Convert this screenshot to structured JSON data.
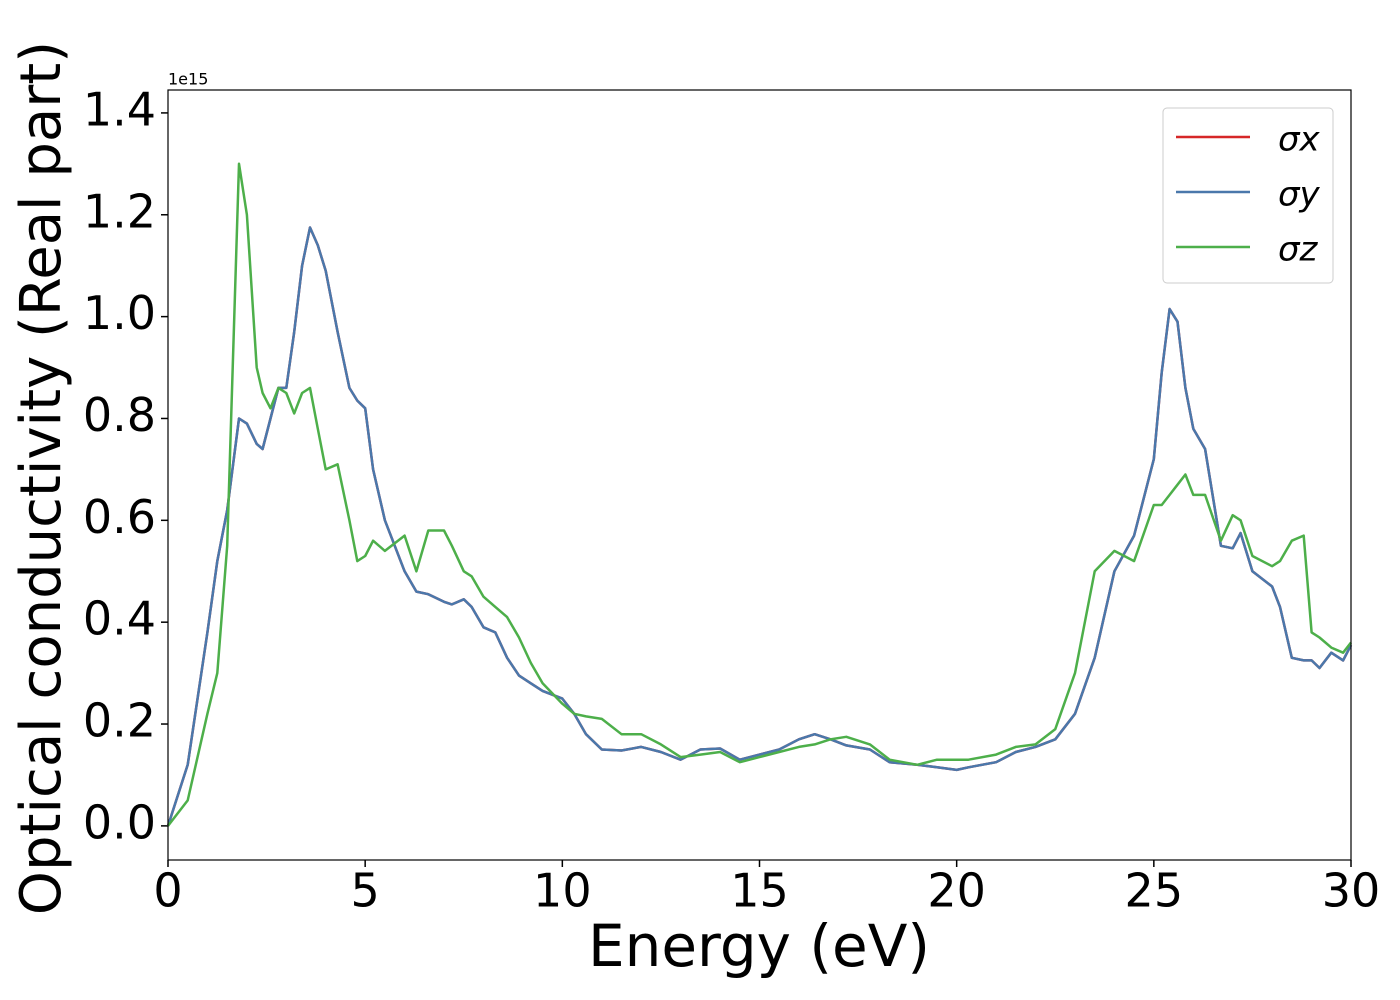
{
  "chart_data": {
    "type": "line",
    "xlabel": "Energy (eV)",
    "ylabel": "Optical conductivity (Real part)",
    "y_offset_text": "1e15",
    "x": [
      0,
      0.5,
      1,
      1.25,
      1.5,
      1.8,
      2,
      2.25,
      2.4,
      2.6,
      2.8,
      3,
      3.2,
      3.4,
      3.6,
      3.8,
      4,
      4.3,
      4.6,
      4.8,
      5,
      5.2,
      5.5,
      6,
      6.3,
      6.6,
      7,
      7.2,
      7.5,
      7.7,
      8,
      8.3,
      8.6,
      8.9,
      9.2,
      9.5,
      10,
      10.3,
      10.6,
      11,
      11.5,
      12,
      12.5,
      13,
      13.5,
      14,
      14.5,
      15,
      15.5,
      16,
      16.4,
      16.8,
      17.2,
      17.8,
      18.3,
      19,
      19.5,
      20,
      20.3,
      21,
      21.5,
      22,
      22.5,
      23,
      23.5,
      24,
      24.5,
      25,
      25.2,
      25.4,
      25.6,
      25.8,
      26,
      26.3,
      26.7,
      27,
      27.2,
      27.5,
      28,
      28.2,
      28.5,
      28.8,
      29,
      29.2,
      29.5,
      29.8,
      30
    ],
    "series": [
      {
        "name": "σx",
        "color": "#d62728",
        "values": [
          0,
          0.12,
          0.38,
          0.52,
          0.62,
          0.8,
          0.79,
          0.75,
          0.74,
          0.8,
          0.86,
          0.86,
          0.97,
          1.1,
          1.175,
          1.14,
          1.09,
          0.97,
          0.86,
          0.835,
          0.82,
          0.7,
          0.6,
          0.5,
          0.46,
          0.455,
          0.44,
          0.435,
          0.445,
          0.43,
          0.39,
          0.38,
          0.33,
          0.295,
          0.28,
          0.265,
          0.25,
          0.22,
          0.18,
          0.15,
          0.148,
          0.155,
          0.145,
          0.13,
          0.15,
          0.152,
          0.13,
          0.14,
          0.15,
          0.17,
          0.18,
          0.17,
          0.158,
          0.15,
          0.125,
          0.12,
          0.115,
          0.11,
          0.115,
          0.125,
          0.145,
          0.155,
          0.17,
          0.22,
          0.33,
          0.5,
          0.57,
          0.72,
          0.89,
          1.015,
          0.99,
          0.86,
          0.78,
          0.74,
          0.55,
          0.545,
          0.575,
          0.5,
          0.47,
          0.43,
          0.33,
          0.325,
          0.325,
          0.31,
          0.34,
          0.325,
          0.355
        ]
      },
      {
        "name": "σy",
        "color": "#4a78ab",
        "values": [
          0,
          0.12,
          0.38,
          0.52,
          0.62,
          0.8,
          0.79,
          0.75,
          0.74,
          0.8,
          0.86,
          0.86,
          0.97,
          1.1,
          1.175,
          1.14,
          1.09,
          0.97,
          0.86,
          0.835,
          0.82,
          0.7,
          0.6,
          0.5,
          0.46,
          0.455,
          0.44,
          0.435,
          0.445,
          0.43,
          0.39,
          0.38,
          0.33,
          0.295,
          0.28,
          0.265,
          0.25,
          0.22,
          0.18,
          0.15,
          0.148,
          0.155,
          0.145,
          0.13,
          0.15,
          0.152,
          0.13,
          0.14,
          0.15,
          0.17,
          0.18,
          0.17,
          0.158,
          0.15,
          0.125,
          0.12,
          0.115,
          0.11,
          0.115,
          0.125,
          0.145,
          0.155,
          0.17,
          0.22,
          0.33,
          0.5,
          0.57,
          0.72,
          0.89,
          1.015,
          0.99,
          0.86,
          0.78,
          0.74,
          0.55,
          0.545,
          0.575,
          0.5,
          0.47,
          0.43,
          0.33,
          0.325,
          0.325,
          0.31,
          0.34,
          0.325,
          0.355
        ]
      },
      {
        "name": "σz",
        "color": "#4daf4a",
        "values": [
          0,
          0.05,
          0.22,
          0.3,
          0.55,
          1.3,
          1.2,
          0.9,
          0.85,
          0.82,
          0.86,
          0.85,
          0.81,
          0.85,
          0.86,
          0.78,
          0.7,
          0.71,
          0.6,
          0.52,
          0.53,
          0.56,
          0.54,
          0.57,
          0.5,
          0.58,
          0.58,
          0.55,
          0.5,
          0.49,
          0.45,
          0.43,
          0.41,
          0.37,
          0.32,
          0.28,
          0.24,
          0.22,
          0.215,
          0.21,
          0.18,
          0.18,
          0.16,
          0.135,
          0.14,
          0.145,
          0.125,
          0.135,
          0.145,
          0.155,
          0.16,
          0.17,
          0.175,
          0.16,
          0.13,
          0.12,
          0.13,
          0.13,
          0.13,
          0.14,
          0.155,
          0.16,
          0.19,
          0.3,
          0.5,
          0.54,
          0.52,
          0.63,
          0.63,
          0.65,
          0.67,
          0.69,
          0.65,
          0.65,
          0.56,
          0.61,
          0.6,
          0.53,
          0.51,
          0.52,
          0.56,
          0.57,
          0.38,
          0.37,
          0.35,
          0.34,
          0.36
        ]
      }
    ],
    "xlim": [
      0,
      30
    ],
    "xticks": [
      0,
      5,
      10,
      15,
      20,
      25,
      30
    ],
    "ylim": [
      -0.067,
      1.445
    ],
    "yticks": [
      {
        "value": 0,
        "label": "0.0"
      },
      0.2,
      0.4,
      0.6,
      0.8,
      {
        "value": 1,
        "label": "1.0"
      },
      1.2,
      1.4
    ],
    "legend": "upper right",
    "grid": false
  }
}
